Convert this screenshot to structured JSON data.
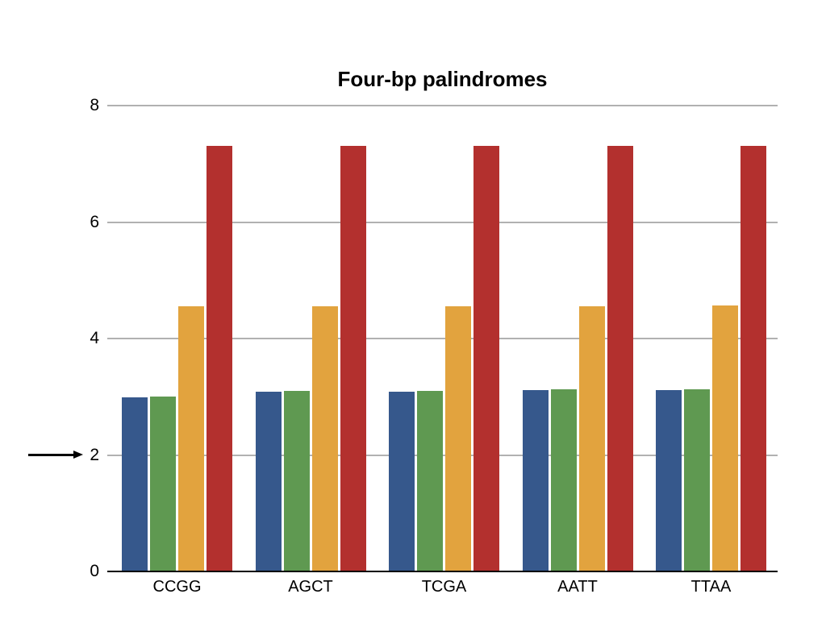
{
  "window": {
    "background_color": "#FFFFFF"
  },
  "chart_data": {
    "type": "bar",
    "title": "Four-bp palindromes",
    "categories": [
      "CCGG",
      "AGCT",
      "TCGA",
      "AATT",
      "TTAA"
    ],
    "series": [
      {
        "name": "series-blue",
        "color": "#36588C",
        "values": [
          2.99,
          3.08,
          3.08,
          3.12,
          3.11
        ]
      },
      {
        "name": "series-green",
        "color": "#5F9951",
        "values": [
          3.01,
          3.1,
          3.1,
          3.13,
          3.13
        ]
      },
      {
        "name": "series-orange",
        "color": "#E2A33E",
        "values": [
          4.56,
          4.56,
          4.56,
          4.56,
          4.57
        ]
      },
      {
        "name": "series-red",
        "color": "#B3302E",
        "values": [
          7.31,
          7.31,
          7.31,
          7.31,
          7.31
        ]
      }
    ],
    "xlabel": "",
    "ylabel": "",
    "ylim": [
      0,
      8
    ],
    "yticks": [
      "0",
      "2",
      "4",
      "6",
      "8"
    ],
    "grid": true,
    "legend_position": "none",
    "annotations": [
      {
        "type": "arrow",
        "direction": "right",
        "points_at_tick": "2"
      }
    ]
  },
  "style_colors": {
    "gridline": "#B1B1B1",
    "axis": "#000000",
    "text": "#000000"
  }
}
